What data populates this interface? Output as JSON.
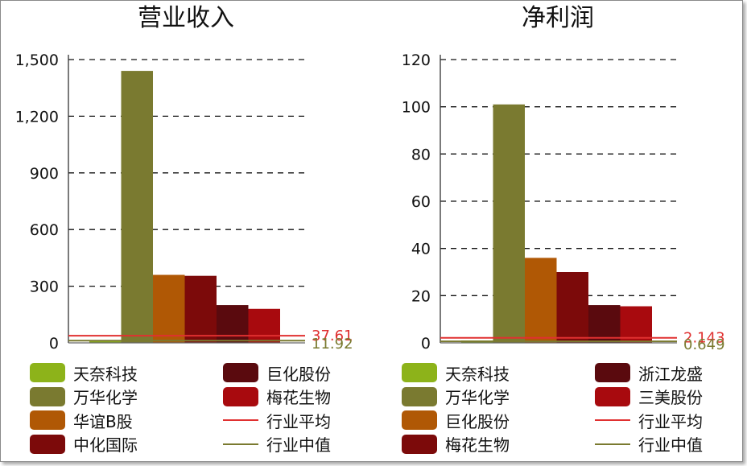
{
  "charts": {
    "revenue": {
      "title": "营业收入",
      "chart_data": {
        "type": "bar",
        "title": "营业收入",
        "ylim": [
          0,
          1500
        ],
        "yticks": [
          0,
          300,
          600,
          900,
          1200,
          1500
        ],
        "ytick_labels": [
          "0",
          "300",
          "600",
          "900",
          "1,200",
          "1,500"
        ],
        "grid": "horizontal dashed",
        "categories": [
          "天奈科技",
          "万华化学",
          "华谊B股",
          "中化国际",
          "巨化股份",
          "梅花生物"
        ],
        "values": [
          12,
          1440,
          360,
          355,
          200,
          180
        ],
        "colors": [
          "#8db31a",
          "#7a7a30",
          "#b05805",
          "#7c0a0a",
          "#5a0a0e",
          "#a80a0e"
        ],
        "reference_lines": [
          {
            "name": "行业平均",
            "value": 37.61,
            "label": "37.61",
            "color": "#e03030"
          },
          {
            "name": "行业中值",
            "value": 11.92,
            "label": "11.92",
            "color": "#7a7a30"
          }
        ],
        "legend_position": "bottom"
      },
      "legend": [
        {
          "label": "天奈科技",
          "kind": "box",
          "color": "#8db31a"
        },
        {
          "label": "万华化学",
          "kind": "box",
          "color": "#7a7a30"
        },
        {
          "label": "华谊B股",
          "kind": "box",
          "color": "#b05805"
        },
        {
          "label": "中化国际",
          "kind": "box",
          "color": "#7c0a0a"
        },
        {
          "label": "巨化股份",
          "kind": "box",
          "color": "#5a0a0e"
        },
        {
          "label": "梅花生物",
          "kind": "box",
          "color": "#a80a0e"
        },
        {
          "label": "行业平均",
          "kind": "line",
          "color": "#e03030"
        },
        {
          "label": "行业中值",
          "kind": "line",
          "color": "#7a7a30"
        }
      ]
    },
    "profit": {
      "title": "净利润",
      "chart_data": {
        "type": "bar",
        "title": "净利润",
        "ylim": [
          0,
          120
        ],
        "yticks": [
          0,
          20,
          40,
          60,
          80,
          100,
          120
        ],
        "ytick_labels": [
          "0",
          "20",
          "40",
          "60",
          "80",
          "100",
          "120"
        ],
        "grid": "horizontal dashed",
        "categories": [
          "天奈科技",
          "万华化学",
          "巨化股份",
          "梅花生物",
          "浙江龙盛",
          "三美股份"
        ],
        "values": [
          1,
          101,
          36,
          30,
          16,
          15.5
        ],
        "colors": [
          "#8db31a",
          "#7a7a30",
          "#b05805",
          "#7c0a0a",
          "#5a0a0e",
          "#a80a0e"
        ],
        "reference_lines": [
          {
            "name": "行业平均",
            "value": 2.143,
            "label": "2.143",
            "color": "#e03030"
          },
          {
            "name": "行业中值",
            "value": 0.649,
            "label": "0.649",
            "color": "#7a7a30"
          }
        ],
        "legend_position": "bottom"
      },
      "legend": [
        {
          "label": "天奈科技",
          "kind": "box",
          "color": "#8db31a"
        },
        {
          "label": "万华化学",
          "kind": "box",
          "color": "#7a7a30"
        },
        {
          "label": "巨化股份",
          "kind": "box",
          "color": "#b05805"
        },
        {
          "label": "梅花生物",
          "kind": "box",
          "color": "#7c0a0a"
        },
        {
          "label": "浙江龙盛",
          "kind": "box",
          "color": "#5a0a0e"
        },
        {
          "label": "三美股份",
          "kind": "box",
          "color": "#a80a0e"
        },
        {
          "label": "行业平均",
          "kind": "line",
          "color": "#e03030"
        },
        {
          "label": "行业中值",
          "kind": "line",
          "color": "#7a7a30"
        }
      ]
    }
  }
}
